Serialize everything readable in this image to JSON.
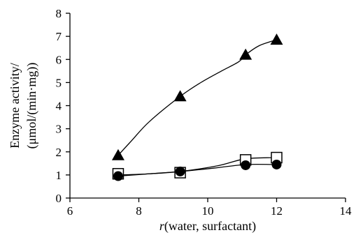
{
  "chart_data": {
    "type": "line",
    "xlabel_italic": "r",
    "xlabel_rest": "(water, surfactant)",
    "ylabel_line1": "Enzyme activity/",
    "ylabel_line2": "(μmol/(min·mg))",
    "xlim": [
      6,
      14
    ],
    "ylim": [
      0,
      8
    ],
    "xticks": [
      "6",
      "8",
      "10",
      "12",
      "14"
    ],
    "yticks": [
      "0",
      "1",
      "2",
      "3",
      "4",
      "5",
      "6",
      "7",
      "8"
    ],
    "grid": false,
    "legend": "none",
    "series": [
      {
        "marker": "triangle",
        "x": [
          7.4,
          9.2,
          11.1,
          12.0
        ],
        "y": [
          1.85,
          4.4,
          6.2,
          6.85
        ],
        "curve": [
          [
            7.4,
            1.85
          ],
          [
            7.8,
            2.5
          ],
          [
            8.3,
            3.3
          ],
          [
            9.2,
            4.4
          ],
          [
            9.8,
            5.0
          ],
          [
            10.4,
            5.5
          ],
          [
            10.9,
            5.9
          ],
          [
            11.1,
            6.2
          ],
          [
            11.5,
            6.6
          ],
          [
            12.0,
            6.85
          ]
        ]
      },
      {
        "marker": "square",
        "x": [
          7.4,
          9.2,
          11.1,
          12.0
        ],
        "y": [
          1.05,
          1.1,
          1.65,
          1.75
        ],
        "curve": [
          [
            7.4,
            1.0
          ],
          [
            8.3,
            1.05
          ],
          [
            9.2,
            1.15
          ],
          [
            10.3,
            1.4
          ],
          [
            11.1,
            1.7
          ],
          [
            12.0,
            1.75
          ]
        ]
      },
      {
        "marker": "circle",
        "x": [
          7.4,
          9.2,
          11.1,
          12.0
        ],
        "y": [
          0.95,
          1.15,
          1.42,
          1.45
        ],
        "curve": [
          [
            7.4,
            0.95
          ],
          [
            8.3,
            1.05
          ],
          [
            9.2,
            1.15
          ],
          [
            10.2,
            1.3
          ],
          [
            11.1,
            1.45
          ],
          [
            12.0,
            1.45
          ]
        ]
      }
    ]
  }
}
